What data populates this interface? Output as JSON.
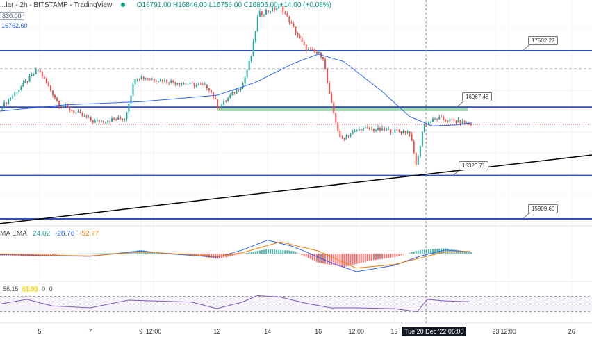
{
  "header": {
    "title": "...lar - 2h - BITSTAMP - TradingView",
    "open": "O16791.00",
    "high": "H16846.00",
    "low": "L16756.00",
    "close": "C16805.00",
    "change": "+14.00 (+0.08%)",
    "price_box": "830.00",
    "ma_value": "16762.60"
  },
  "macd": {
    "label": "MA EMA",
    "v1": "24.02",
    "v2": "-28.76",
    "v3": "-52.77"
  },
  "rsi": {
    "v1": "56.15",
    "v2": "61.93",
    "v3": "0",
    "v4": "0"
  },
  "colors": {
    "up": "#26a69a",
    "down": "#ef5350",
    "level": "#2f4fbf",
    "ma": "#2962ff",
    "trend": "#000000",
    "zone": "#8fd19e",
    "signal": "#f57c00",
    "rsi": "#7e57c2"
  },
  "chart_data": {
    "type": "candlestick",
    "symbol": "BITSTAMP",
    "interval": "2h",
    "x_unit": "day of December 2022",
    "xlim": [
      3.44,
      26.8
    ],
    "ylim": [
      15860,
      17990
    ],
    "grid": true,
    "x_ticks": [
      {
        "x": 5,
        "label": "5"
      },
      {
        "x": 7,
        "label": "7"
      },
      {
        "x": 9,
        "label": "9"
      },
      {
        "x": 9.5,
        "label": "12:00"
      },
      {
        "x": 12,
        "label": "12"
      },
      {
        "x": 14,
        "label": "14"
      },
      {
        "x": 16,
        "label": "16"
      },
      {
        "x": 17.5,
        "label": "12:00"
      },
      {
        "x": 19,
        "label": "19"
      },
      {
        "x": 23,
        "label": "23"
      },
      {
        "x": 23.5,
        "label": "12:00"
      },
      {
        "x": 26,
        "label": "26"
      }
    ],
    "crosshair": {
      "x": 20.25,
      "label": "Tue 20 Dec '22  06:00"
    },
    "close_path": [
      [
        3.44,
        16957
      ],
      [
        4.95,
        17325
      ],
      [
        5.77,
        16997
      ],
      [
        7.14,
        16831
      ],
      [
        8.37,
        16864
      ],
      [
        8.78,
        17259
      ],
      [
        11.66,
        17160
      ],
      [
        12.07,
        16963
      ],
      [
        13.03,
        17193
      ],
      [
        13.36,
        17456
      ],
      [
        13.63,
        17851
      ],
      [
        14.53,
        17917
      ],
      [
        15.49,
        17522
      ],
      [
        16.18,
        17456
      ],
      [
        16.45,
        17062
      ],
      [
        16.86,
        16667
      ],
      [
        17.68,
        16765
      ],
      [
        19.6,
        16733
      ],
      [
        19.88,
        16404
      ],
      [
        20.15,
        16798
      ],
      [
        20.7,
        16864
      ],
      [
        22.07,
        16805
      ]
    ],
    "moving_average": [
      [
        3.44,
        16930
      ],
      [
        6,
        16990
      ],
      [
        9,
        17020
      ],
      [
        12,
        17080
      ],
      [
        13.5,
        17200
      ],
      [
        15,
        17380
      ],
      [
        16,
        17470
      ],
      [
        17,
        17400
      ],
      [
        18.5,
        17120
      ],
      [
        19.6,
        16880
      ],
      [
        20.5,
        16790
      ],
      [
        21.5,
        16800
      ],
      [
        22.07,
        16820
      ]
    ],
    "levels": [
      {
        "price": 17502.27,
        "label": "17502.27"
      },
      {
        "price": 16967.48,
        "label": "16967.48"
      },
      {
        "price": 16320.71,
        "label": "16320.71"
      },
      {
        "price": 15909.6,
        "label": "15909.60"
      }
    ],
    "dashed_level": 17330,
    "current_price": 16805,
    "zone": {
      "from": 12,
      "to": 21.9,
      "low": 16930,
      "high": 16975
    },
    "trendline": [
      [
        3.44,
        15865
      ],
      [
        26.8,
        16515
      ]
    ],
    "macd_hist": [
      [
        3.44,
        -20
      ],
      [
        5,
        -30
      ],
      [
        6,
        0
      ],
      [
        8,
        5
      ],
      [
        9,
        40
      ],
      [
        10,
        0
      ],
      [
        11,
        -10
      ],
      [
        12,
        -60
      ],
      [
        13,
        0
      ],
      [
        14,
        50
      ],
      [
        15,
        30
      ],
      [
        16,
        -100
      ],
      [
        17,
        -150
      ],
      [
        18,
        -80
      ],
      [
        19,
        -40
      ],
      [
        20,
        40
      ],
      [
        21,
        60
      ],
      [
        22,
        20
      ]
    ],
    "macd_line": [
      [
        3.44,
        -10
      ],
      [
        5,
        -20
      ],
      [
        7,
        -30
      ],
      [
        9,
        30
      ],
      [
        10,
        0
      ],
      [
        12,
        -40
      ],
      [
        13,
        40
      ],
      [
        14,
        150
      ],
      [
        15,
        80
      ],
      [
        16.5,
        -100
      ],
      [
        17.5,
        -200
      ],
      [
        19,
        -130
      ],
      [
        20,
        -30
      ],
      [
        21,
        40
      ],
      [
        22,
        20
      ]
    ],
    "signal_line": [
      [
        3.44,
        -5
      ],
      [
        5,
        -15
      ],
      [
        7,
        -25
      ],
      [
        9,
        20
      ],
      [
        10,
        5
      ],
      [
        12,
        -30
      ],
      [
        13,
        10
      ],
      [
        14.5,
        130
      ],
      [
        16,
        30
      ],
      [
        17.5,
        -160
      ],
      [
        19,
        -120
      ],
      [
        20,
        -50
      ],
      [
        21,
        20
      ],
      [
        22,
        25
      ]
    ],
    "rsi_values": [
      [
        3.44,
        50
      ],
      [
        4.5,
        62
      ],
      [
        5.5,
        45
      ],
      [
        7,
        40
      ],
      [
        8.5,
        60
      ],
      [
        9.5,
        58
      ],
      [
        11,
        55
      ],
      [
        12,
        38
      ],
      [
        13,
        55
      ],
      [
        13.6,
        72
      ],
      [
        14.5,
        68
      ],
      [
        15.5,
        52
      ],
      [
        16.5,
        40
      ],
      [
        17.5,
        40
      ],
      [
        19,
        38
      ],
      [
        19.9,
        30
      ],
      [
        20.3,
        62
      ],
      [
        21,
        58
      ],
      [
        22,
        56
      ]
    ]
  }
}
